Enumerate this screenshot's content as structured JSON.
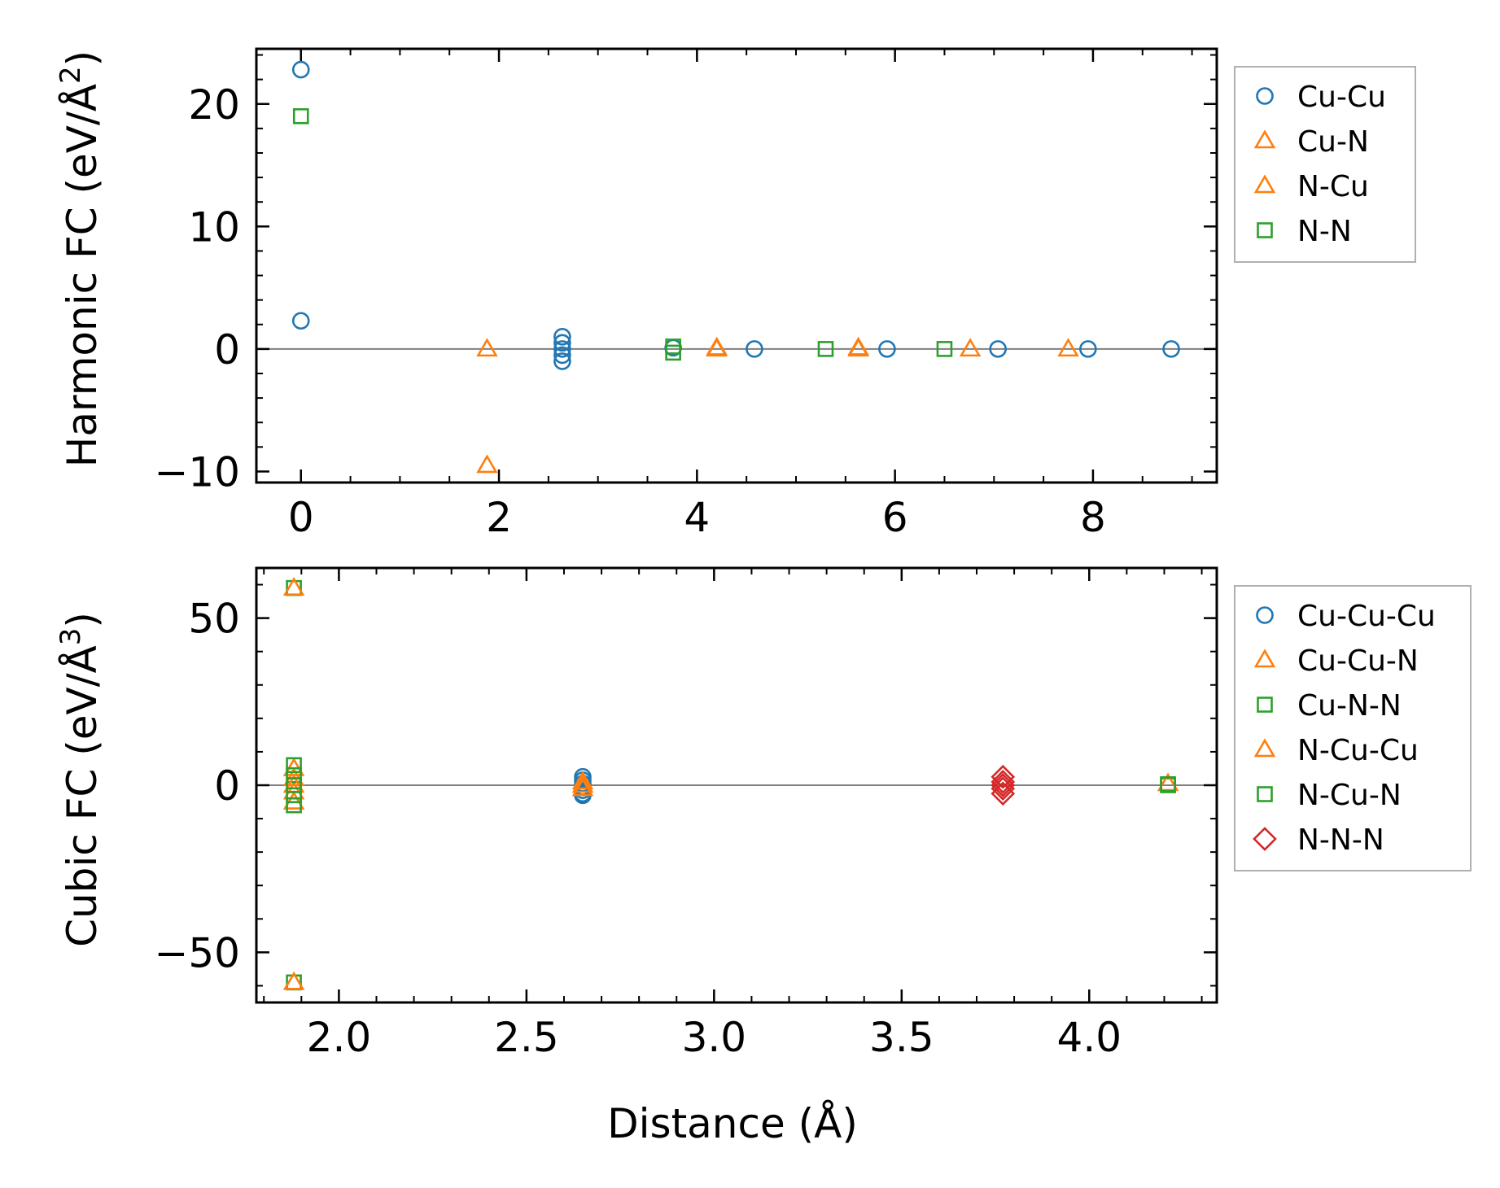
{
  "chart_data": [
    {
      "id": "harmonic",
      "type": "scatter",
      "ylabel_main": "Harmonic FC (eV/Å",
      "ylabel_sup": "2",
      "ylabel_end": ")",
      "xlabel": "",
      "xlim": [
        -0.45,
        9.25
      ],
      "ylim": [
        -10.9,
        24.5
      ],
      "xticks": [
        0,
        2,
        4,
        6,
        8
      ],
      "xtick_labels": [
        "0",
        "2",
        "4",
        "6",
        "8"
      ],
      "yticks": [
        -10,
        0,
        10,
        20
      ],
      "ytick_labels": [
        "−10",
        "0",
        "10",
        "20"
      ],
      "x_minor_step": 0.5,
      "y_minor_step": 2,
      "zero_line": true,
      "series": [
        {
          "name": "Cu-Cu",
          "marker": "circle",
          "color": "#1f77b4",
          "points": [
            [
              0,
              22.8
            ],
            [
              0,
              2.3
            ],
            [
              2.64,
              1.0
            ],
            [
              2.64,
              0.5
            ],
            [
              2.64,
              0.0
            ],
            [
              2.64,
              -0.5
            ],
            [
              2.64,
              -1.0
            ],
            [
              3.76,
              0.1
            ],
            [
              4.58,
              0
            ],
            [
              5.92,
              0
            ],
            [
              7.04,
              0
            ],
            [
              7.95,
              0
            ],
            [
              8.79,
              0
            ]
          ]
        },
        {
          "name": "Cu-N",
          "marker": "triangle",
          "color": "#ff7f0e",
          "points": [
            [
              1.88,
              0
            ],
            [
              1.88,
              -9.5
            ],
            [
              4.2,
              0
            ],
            [
              5.63,
              0
            ],
            [
              6.76,
              0
            ],
            [
              7.75,
              0
            ]
          ]
        },
        {
          "name": "N-Cu",
          "marker": "triangle",
          "color": "#ff7f0e",
          "points": [
            [
              4.2,
              0.1
            ],
            [
              5.63,
              0.1
            ]
          ]
        },
        {
          "name": "N-N",
          "marker": "square",
          "color": "#2ca02c",
          "points": [
            [
              0,
              19.0
            ],
            [
              3.76,
              0.2
            ],
            [
              3.76,
              -0.3
            ],
            [
              5.3,
              0
            ],
            [
              6.5,
              0
            ]
          ]
        }
      ]
    },
    {
      "id": "cubic",
      "type": "scatter",
      "ylabel_main": "Cubic FC (eV/Å",
      "ylabel_sup": "3",
      "ylabel_end": ")",
      "xlabel": "Distance (Å)",
      "xlim": [
        1.78,
        4.34
      ],
      "ylim": [
        -65,
        65
      ],
      "xticks": [
        2.0,
        2.5,
        3.0,
        3.5,
        4.0
      ],
      "xtick_labels": [
        "2.0",
        "2.5",
        "3.0",
        "3.5",
        "4.0"
      ],
      "yticks": [
        -50,
        0,
        50
      ],
      "ytick_labels": [
        "−50",
        "0",
        "50"
      ],
      "x_minor_step": 0.1,
      "y_minor_step": 10,
      "zero_line": true,
      "series": [
        {
          "name": "Cu-Cu-Cu",
          "marker": "circle",
          "color": "#1f77b4",
          "points": [
            [
              2.65,
              2.5
            ],
            [
              2.65,
              1.5
            ],
            [
              2.65,
              0.5
            ],
            [
              2.65,
              -0.5
            ],
            [
              2.65,
              -1.5
            ],
            [
              2.65,
              -2.5
            ],
            [
              2.65,
              -3.0
            ]
          ]
        },
        {
          "name": "Cu-Cu-N",
          "marker": "triangle",
          "color": "#ff7f0e",
          "points": [
            [
              1.88,
              5
            ],
            [
              1.88,
              2
            ],
            [
              1.88,
              -2
            ],
            [
              1.88,
              -5
            ],
            [
              2.65,
              1
            ],
            [
              2.65,
              -1
            ]
          ]
        },
        {
          "name": "Cu-N-N",
          "marker": "square",
          "color": "#2ca02c",
          "points": [
            [
              1.88,
              59
            ],
            [
              1.88,
              -59
            ],
            [
              1.88,
              6
            ],
            [
              1.88,
              3
            ],
            [
              1.88,
              -3
            ],
            [
              1.88,
              -6
            ],
            [
              4.21,
              0
            ]
          ]
        },
        {
          "name": "N-Cu-Cu",
          "marker": "triangle",
          "color": "#ff7f0e",
          "points": [
            [
              1.88,
              59
            ],
            [
              1.88,
              -59
            ],
            [
              1.88,
              0
            ],
            [
              2.65,
              0
            ],
            [
              4.21,
              0.5
            ]
          ]
        },
        {
          "name": "N-Cu-N",
          "marker": "square",
          "color": "#2ca02c",
          "points": [
            [
              1.88,
              0
            ],
            [
              4.21,
              0.3
            ]
          ]
        },
        {
          "name": "N-N-N",
          "marker": "diamond",
          "color": "#d62728",
          "points": [
            [
              3.77,
              2.5
            ],
            [
              3.77,
              1.0
            ],
            [
              3.77,
              0
            ],
            [
              3.77,
              -1.0
            ],
            [
              3.77,
              -2.5
            ]
          ]
        }
      ]
    }
  ]
}
